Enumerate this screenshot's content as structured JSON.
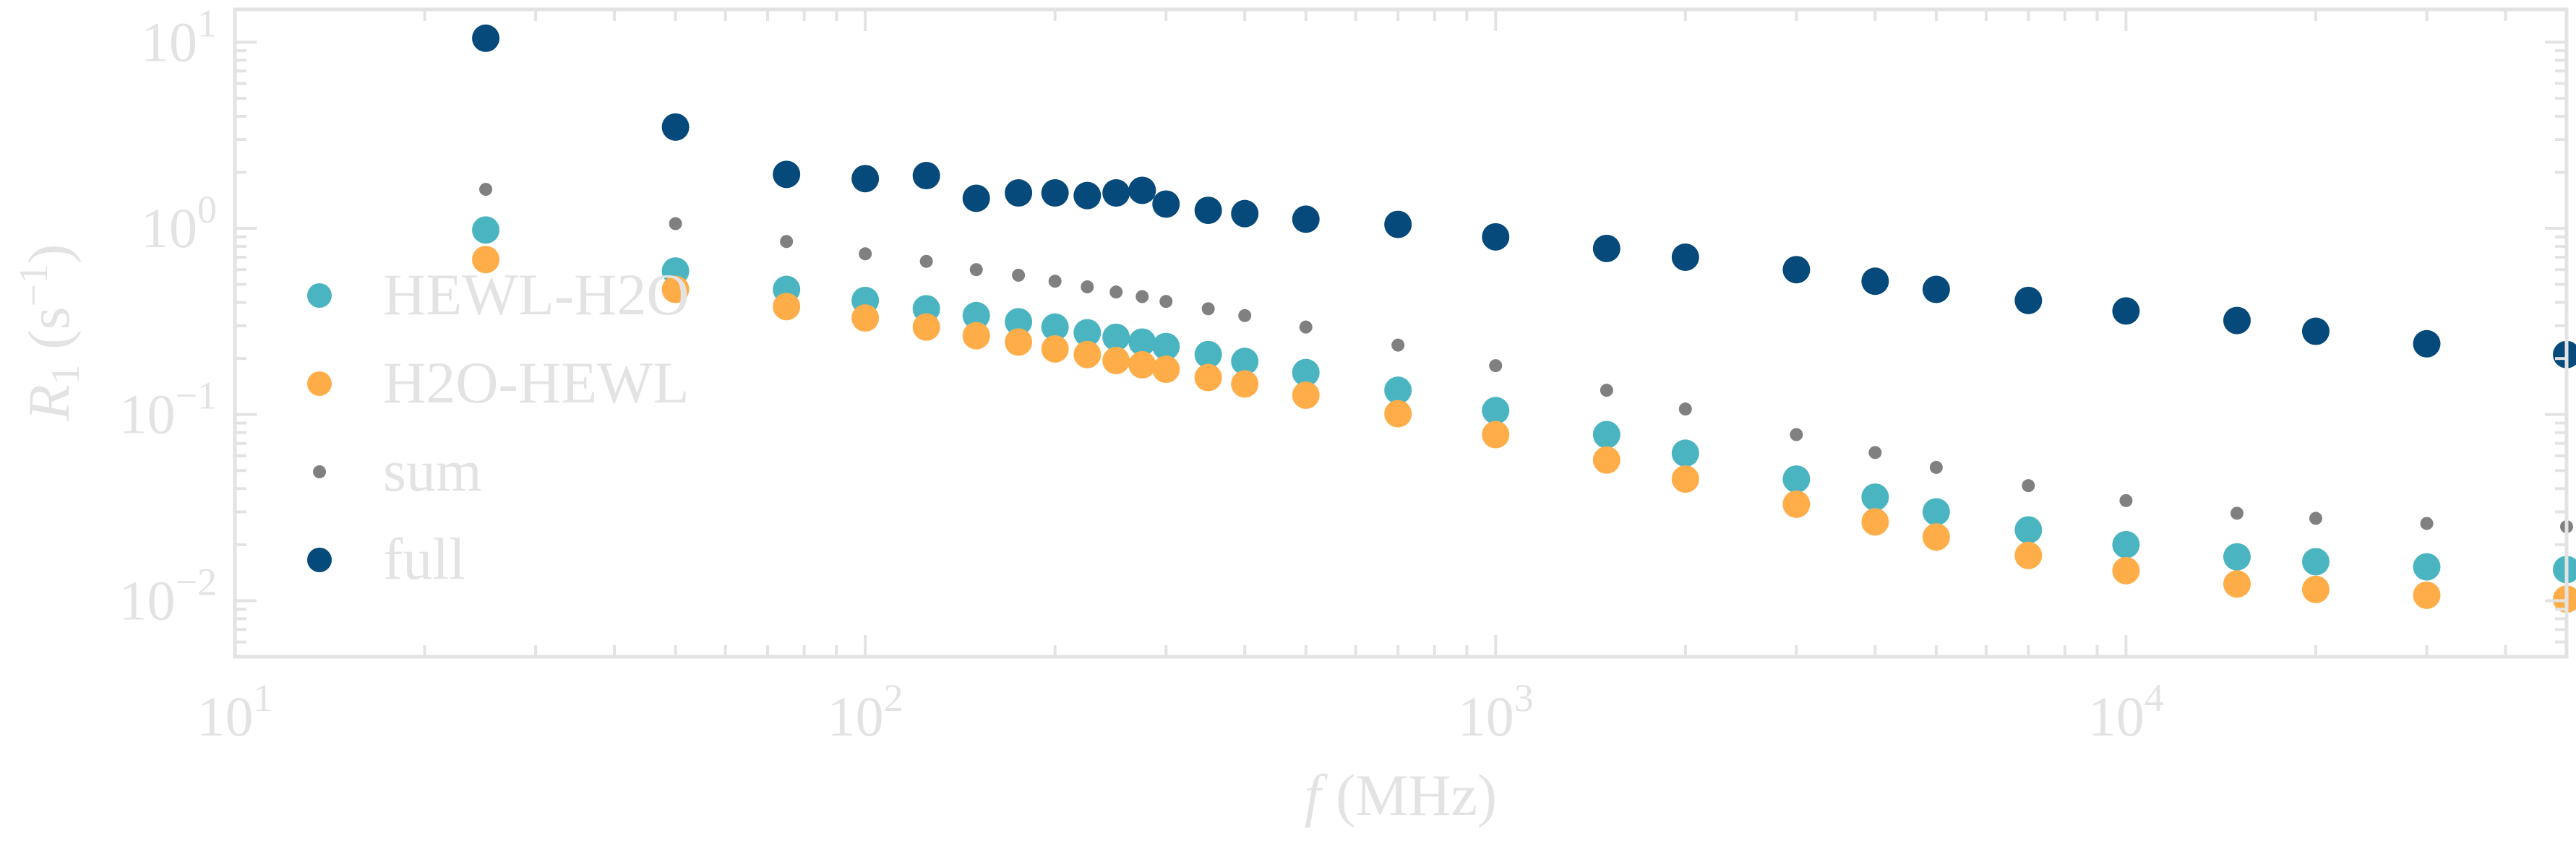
{
  "chart_data": {
    "type": "scatter",
    "xscale": "log",
    "yscale": "log",
    "xlim": [
      10,
      50000
    ],
    "ylim": [
      0.005,
      15
    ],
    "xlabel": {
      "italic": "f",
      "rest": " (MHz)"
    },
    "ylabel": {
      "main": "R",
      "sub": "1",
      "rest": " (s",
      "exp": "−1",
      "close": ")"
    },
    "x_ticks": [
      {
        "base": "10",
        "exp": "1",
        "value": 10
      },
      {
        "base": "10",
        "exp": "2",
        "value": 100
      },
      {
        "base": "10",
        "exp": "3",
        "value": 1000
      },
      {
        "base": "10",
        "exp": "4",
        "value": 10000
      }
    ],
    "y_ticks": [
      {
        "base": "10",
        "exp": "1",
        "value": 10
      },
      {
        "base": "10",
        "exp": "0",
        "value": 1
      },
      {
        "base": "10",
        "exp": "−1",
        "value": 0.1
      },
      {
        "base": "10",
        "exp": "−2",
        "value": 0.01
      }
    ],
    "grid": false,
    "legend_position": "left",
    "series": [
      {
        "name": "HEWL-H2O",
        "color": "#4ab5c1",
        "marker": "large-circle",
        "x": [
          25,
          50,
          75,
          100,
          125,
          150,
          175,
          200,
          225,
          250,
          275,
          300,
          350,
          400,
          500,
          700,
          1000,
          1500,
          2000,
          3000,
          4000,
          5000,
          7000,
          10000,
          15000,
          20000,
          30000,
          50000
        ],
        "y": [
          0.98,
          0.59,
          0.47,
          0.41,
          0.37,
          0.34,
          0.315,
          0.295,
          0.275,
          0.26,
          0.245,
          0.232,
          0.21,
          0.193,
          0.168,
          0.135,
          0.105,
          0.078,
          0.062,
          0.045,
          0.036,
          0.03,
          0.024,
          0.02,
          0.0172,
          0.0162,
          0.0152,
          0.0147
        ]
      },
      {
        "name": "H2O-HEWL",
        "color": "#ffad48",
        "marker": "large-circle",
        "x": [
          25,
          50,
          75,
          100,
          125,
          150,
          175,
          200,
          225,
          250,
          275,
          300,
          350,
          400,
          500,
          700,
          1000,
          1500,
          2000,
          3000,
          4000,
          5000,
          7000,
          10000,
          15000,
          20000,
          30000,
          50000
        ],
        "y": [
          0.68,
          0.47,
          0.38,
          0.33,
          0.295,
          0.265,
          0.245,
          0.225,
          0.21,
          0.195,
          0.185,
          0.175,
          0.158,
          0.146,
          0.127,
          0.101,
          0.078,
          0.057,
          0.045,
          0.033,
          0.0265,
          0.022,
          0.0175,
          0.0145,
          0.0123,
          0.0115,
          0.0107,
          0.0102
        ]
      },
      {
        "name": "sum",
        "color": "#808080",
        "marker": "small-circle",
        "x": [
          25,
          50,
          75,
          100,
          125,
          150,
          175,
          200,
          225,
          250,
          275,
          300,
          350,
          400,
          500,
          700,
          1000,
          1500,
          2000,
          3000,
          4000,
          5000,
          7000,
          10000,
          15000,
          20000,
          30000,
          50000
        ],
        "y": [
          1.62,
          1.06,
          0.85,
          0.73,
          0.665,
          0.6,
          0.56,
          0.52,
          0.485,
          0.455,
          0.43,
          0.405,
          0.37,
          0.34,
          0.295,
          0.236,
          0.183,
          0.135,
          0.107,
          0.078,
          0.0625,
          0.052,
          0.0415,
          0.0345,
          0.0295,
          0.0277,
          0.026,
          0.025
        ]
      },
      {
        "name": "full",
        "color": "#054a7a",
        "marker": "large-circle",
        "x": [
          25,
          50,
          75,
          100,
          125,
          150,
          175,
          200,
          225,
          250,
          275,
          300,
          350,
          400,
          500,
          700,
          1000,
          1500,
          2000,
          3000,
          4000,
          5000,
          7000,
          10000,
          15000,
          20000,
          30000,
          50000
        ],
        "y": [
          10.5,
          3.5,
          1.95,
          1.85,
          1.92,
          1.45,
          1.55,
          1.55,
          1.5,
          1.55,
          1.6,
          1.35,
          1.25,
          1.2,
          1.12,
          1.05,
          0.9,
          0.78,
          0.7,
          0.6,
          0.52,
          0.47,
          0.41,
          0.36,
          0.32,
          0.28,
          0.24,
          0.21
        ]
      }
    ]
  }
}
